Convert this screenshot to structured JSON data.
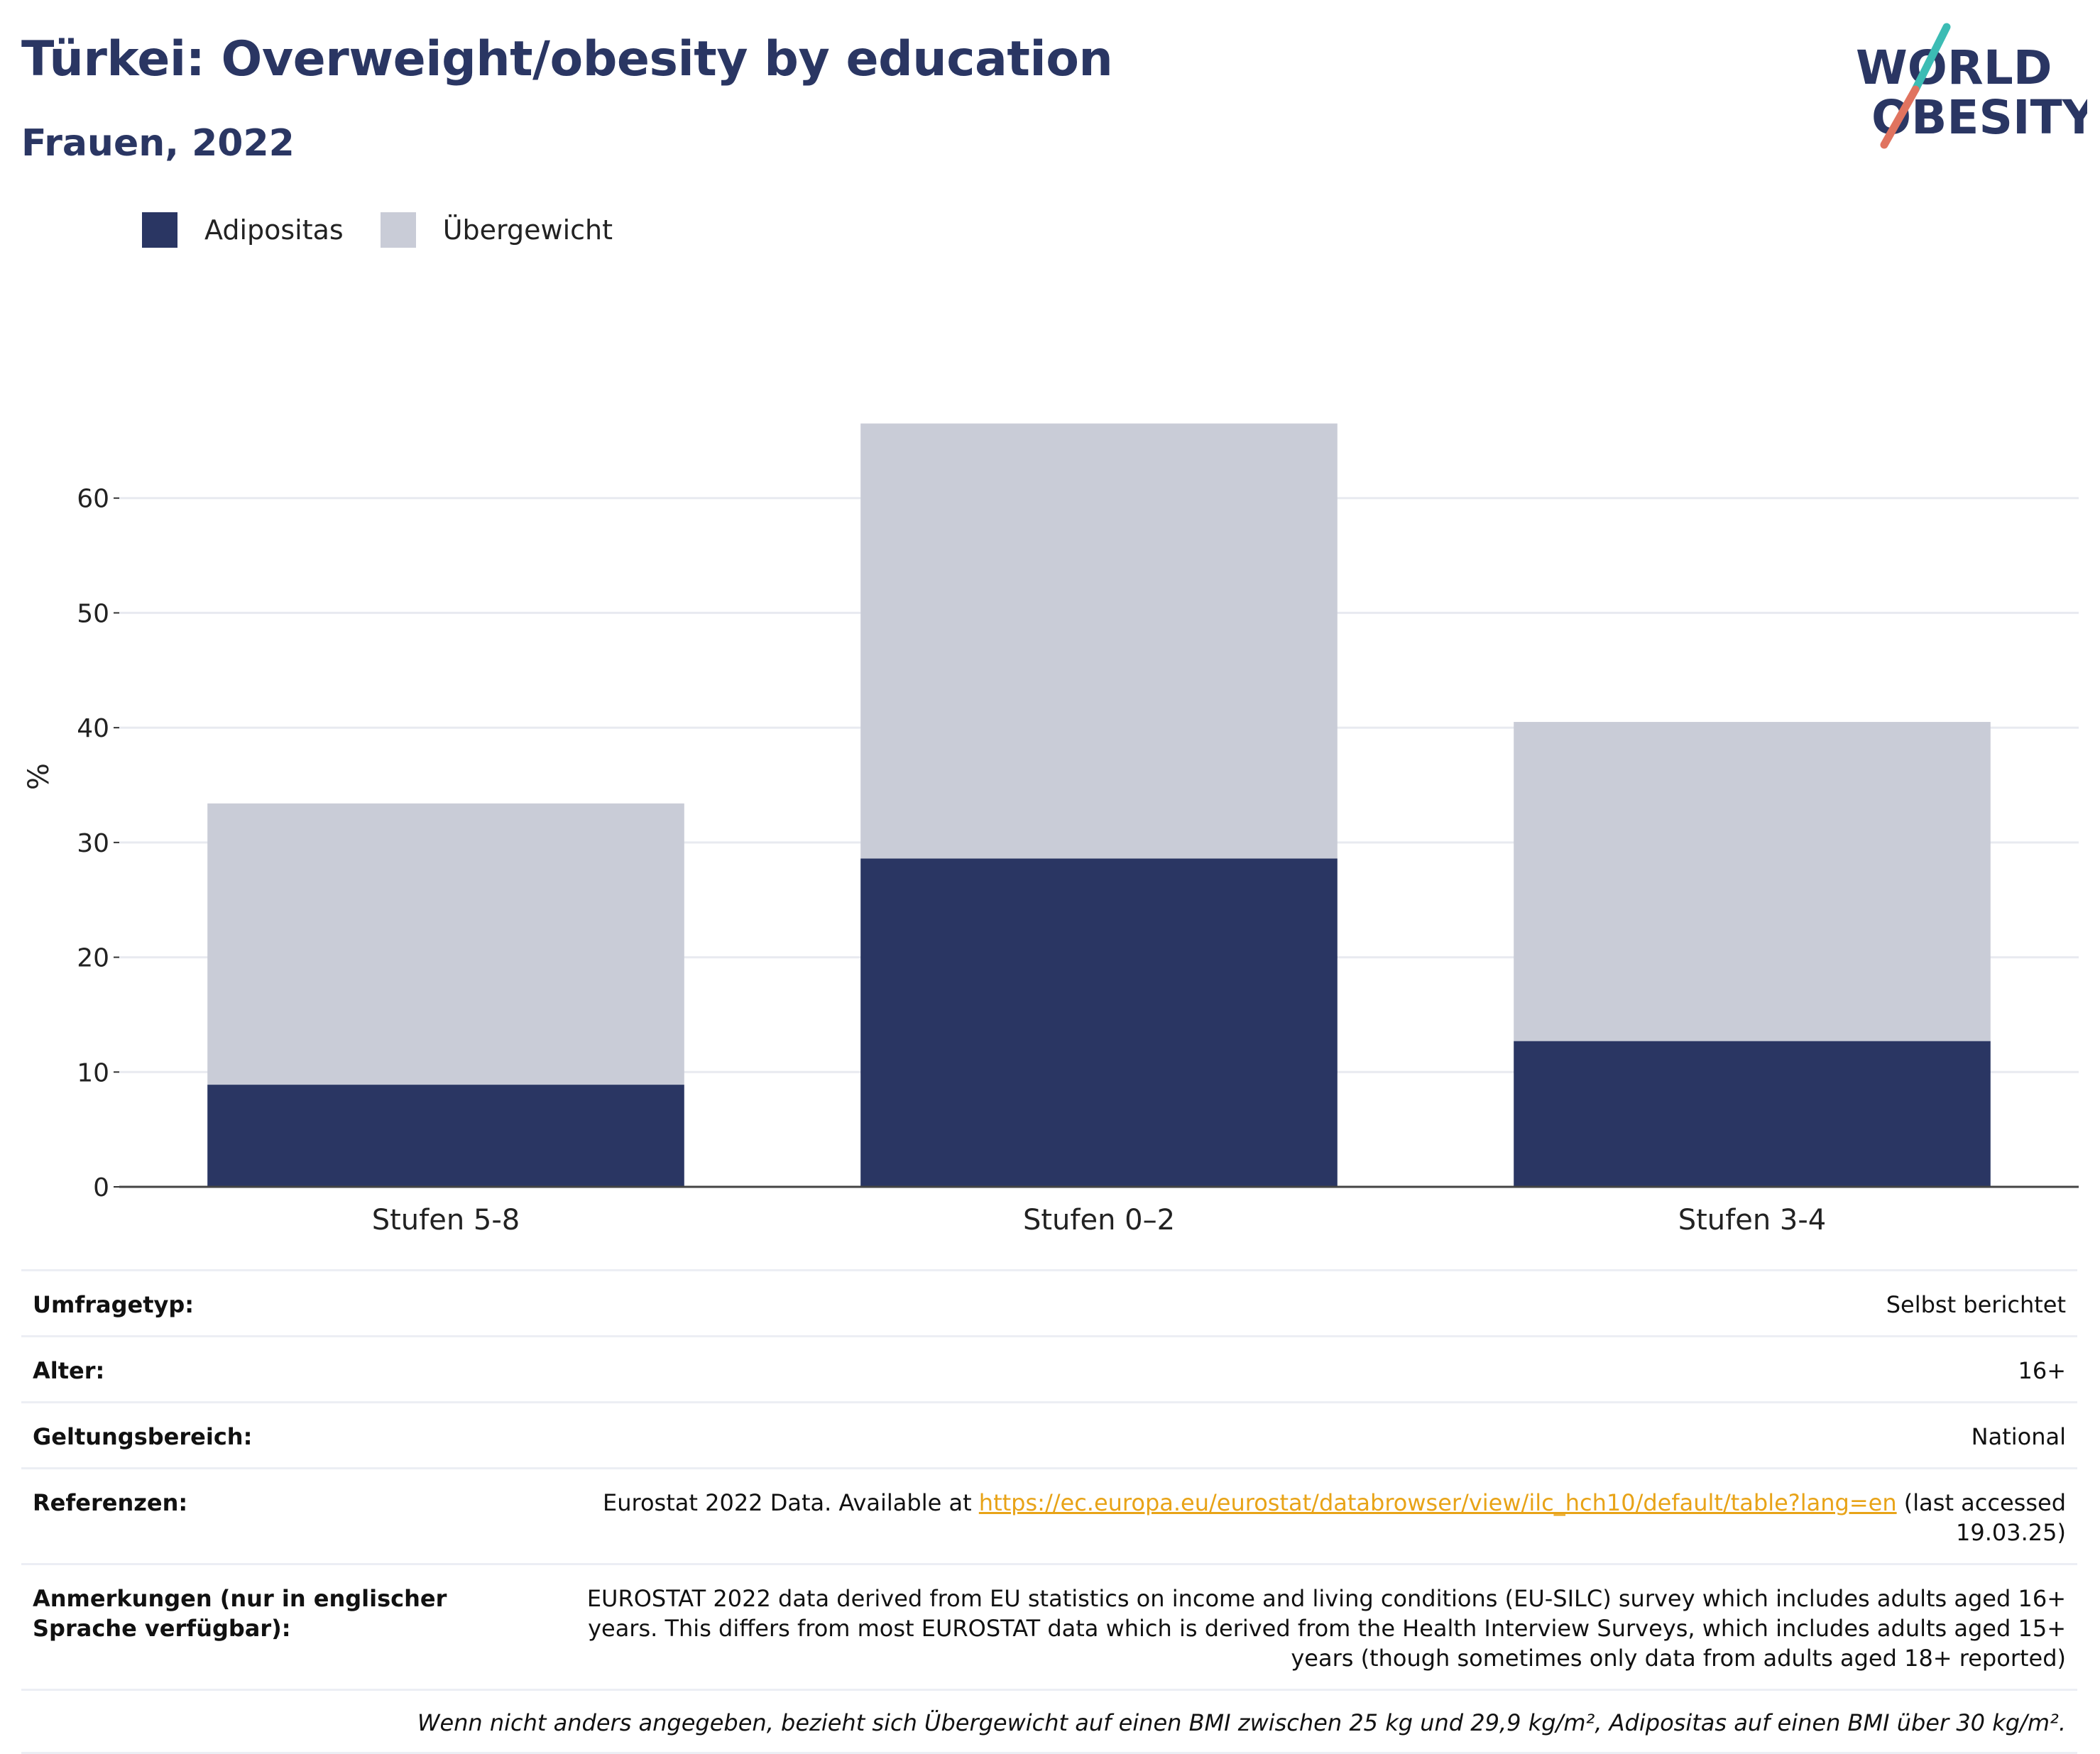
{
  "header": {
    "title": "Türkei: Overweight/obesity by education",
    "subtitle": "Frauen, 2022"
  },
  "logo": {
    "line1": "WORLD",
    "line2": "OBESITY"
  },
  "legend": [
    {
      "label": "Adipositas",
      "color": "#2a3663"
    },
    {
      "label": "Übergewicht",
      "color": "#c9ccd7"
    }
  ],
  "chart_data": {
    "type": "bar",
    "stacked": true,
    "categories": [
      "Stufen 5-8",
      "Stufen 0–2",
      "Stufen 3-4"
    ],
    "series": [
      {
        "name": "Adipositas",
        "color": "#2a3663",
        "values": [
          8.9,
          28.6,
          12.7
        ]
      },
      {
        "name": "Übergewicht",
        "color": "#c9ccd7",
        "values": [
          24.5,
          37.9,
          27.8
        ]
      }
    ],
    "ylabel": "%",
    "ylim": [
      0,
      70
    ],
    "yticks": [
      0,
      10,
      20,
      30,
      40,
      50,
      60
    ],
    "grid": true,
    "legend_position": "top-left"
  },
  "info": {
    "rows": [
      {
        "label": "Umfragetyp:",
        "value": "Selbst berichtet"
      },
      {
        "label": "Alter:",
        "value": "16+"
      },
      {
        "label": "Geltungsbereich:",
        "value": "National"
      }
    ],
    "references": {
      "label": "Referenzen:",
      "prefix": "Eurostat 2022 Data. Available at ",
      "link": "https://ec.europa.eu/eurostat/databrowser/view/ilc_hch10/default/table?lang=en",
      "suffix": " (last accessed 19.03.25)"
    },
    "notes": {
      "label": "Anmerkungen (nur in englischer Sprache verfügbar):",
      "value": "EUROSTAT 2022 data derived from EU statistics on income and living conditions (EU-SILC) survey which includes adults aged 16+ years. This differs from most EUROSTAT data which is derived from the Health Interview Surveys, which includes adults aged 15+ years (though sometimes only data from adults aged 18+ reported)"
    },
    "footnote": "Wenn nicht anders angegeben, bezieht sich Übergewicht auf einen BMI zwischen 25 kg und 29,9 kg/m², Adipositas auf einen BMI über 30 kg/m²."
  }
}
